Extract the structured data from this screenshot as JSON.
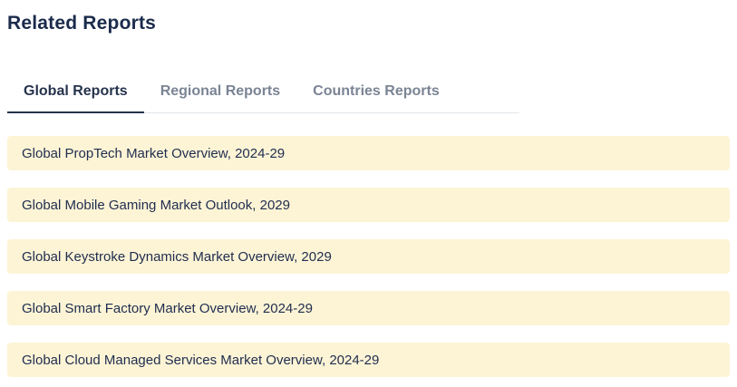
{
  "page": {
    "title": "Related Reports"
  },
  "tabs": [
    {
      "label": "Global Reports",
      "active": true
    },
    {
      "label": "Regional Reports",
      "active": false
    },
    {
      "label": "Countries Reports",
      "active": false
    }
  ],
  "reports": [
    {
      "title": "Global PropTech Market Overview, 2024-29"
    },
    {
      "title": "Global Mobile Gaming Market Outlook, 2029"
    },
    {
      "title": "Global Keystroke Dynamics Market Overview, 2029"
    },
    {
      "title": "Global Smart Factory Market Overview, 2024-29"
    },
    {
      "title": "Global Cloud Managed Services Market Overview, 2024-29"
    }
  ],
  "colors": {
    "heading": "#1b2b4b",
    "tab_active": "#26334d",
    "tab_inactive": "#7a8494",
    "tab_divider": "#e3e6ea",
    "item_background": "#fdf4d6",
    "item_text": "#1f2d4e"
  }
}
